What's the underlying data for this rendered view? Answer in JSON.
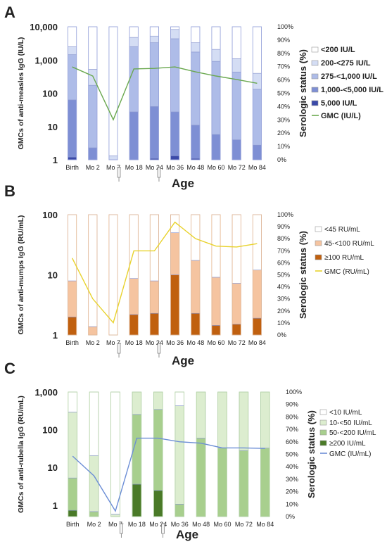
{
  "x_axis_label": "Age",
  "chart_data": [
    {
      "type": "bar",
      "panel": "A",
      "stacked": true,
      "ylabel": "GMCs of anti-measles IgG (IU/L)",
      "y2label": "Serologic status (%)",
      "yscale": "log",
      "yticks": [
        "1",
        "10",
        "100",
        "1,000",
        "10,000"
      ],
      "ylim": [
        1,
        10000
      ],
      "y2lim": [
        0,
        100
      ],
      "y2ticks": [
        "0%",
        "10%",
        "20%",
        "30%",
        "40%",
        "50%",
        "60%",
        "70%",
        "80%",
        "90%",
        "100%"
      ],
      "categories": [
        "Birth",
        "Mo 2",
        "Mo 7",
        "Mo 18",
        "Mo 24",
        "Mo 36",
        "Mo 48",
        "Mo 60",
        "Mo 72",
        "Mo 84"
      ],
      "vaccination_markers_at": [
        "Mo 7",
        "Mo 24"
      ],
      "series": [
        {
          "name": "5,000 IU/L",
          "color": "#3a49a8",
          "values": [
            2,
            0,
            0,
            0,
            1,
            3,
            1,
            0,
            0,
            0
          ]
        },
        {
          "name": "1,000-<5,000 IU/L",
          "color": "#7e8fd4",
          "values": [
            43,
            9,
            0,
            36,
            39,
            33,
            25,
            19,
            15,
            11
          ]
        },
        {
          "name": "275-<1,000 IU/L",
          "color": "#aebce8",
          "values": [
            34,
            47,
            0,
            49,
            48,
            55,
            55,
            55,
            51,
            42
          ]
        },
        {
          "name": "200-<275 IU/L",
          "color": "#d4ddf4",
          "values": [
            6,
            12,
            3,
            7,
            5,
            7,
            7,
            9,
            10,
            12
          ]
        },
        {
          "name": "<200 IU/L",
          "color": "#ffffff",
          "values": [
            15,
            32,
            97,
            8,
            7,
            2,
            12,
            17,
            24,
            35
          ]
        }
      ],
      "gmc_line": {
        "name": "GMC (IU/L)",
        "color": "#6aa84f",
        "values": [
          620,
          330,
          16,
          540,
          560,
          620,
          440,
          330,
          260,
          200
        ]
      }
    },
    {
      "type": "bar",
      "panel": "B",
      "stacked": true,
      "ylabel": "GMCs of anti-mumps IgG (RU/mL)",
      "y2label": "Serologic status (%)",
      "yscale": "log",
      "yticks": [
        "1",
        "10",
        "100"
      ],
      "ylim": [
        1,
        100
      ],
      "y2lim": [
        0,
        100
      ],
      "y2ticks": [
        "0%",
        "10%",
        "20%",
        "30%",
        "40%",
        "50%",
        "60%",
        "70%",
        "80%",
        "90%",
        "100%"
      ],
      "categories": [
        "Birth",
        "Mo 2",
        "Mo 7",
        "Mo 18",
        "Mo 24",
        "Mo 36",
        "Mo 48",
        "Mo 60",
        "Mo 72",
        "Mo 84"
      ],
      "vaccination_markers_at": [
        "Mo 7",
        "Mo 24"
      ],
      "series": [
        {
          "name": "≥100 RU/mL",
          "color": "#c0600f",
          "values": [
            15,
            0,
            0,
            17,
            18,
            50,
            18,
            8,
            9,
            14
          ]
        },
        {
          "name": "45-<100 RU/mL",
          "color": "#f5c4a0",
          "values": [
            30,
            7,
            0,
            30,
            27,
            35,
            44,
            40,
            34,
            40
          ]
        },
        {
          "name": "<45 RU/mL",
          "color": "#ffffff",
          "values": [
            55,
            93,
            100,
            53,
            55,
            15,
            38,
            52,
            57,
            46
          ]
        }
      ],
      "gmc_line": {
        "name": "GMC (RU/mL)",
        "color": "#e8d22c",
        "values": [
          19,
          4,
          1.6,
          25,
          25,
          75,
          40,
          30,
          29,
          33
        ]
      }
    },
    {
      "type": "bar",
      "panel": "C",
      "stacked": true,
      "ylabel": "GMCs of anti-rubella IgG (RU/mL)",
      "y2label": "Serologic status (%)",
      "yscale": "log",
      "yticks": [
        "1",
        "10",
        "100",
        "1,000"
      ],
      "ylim": [
        0.5,
        1000
      ],
      "y2lim": [
        0,
        100
      ],
      "y2ticks": [
        "0%",
        "10%",
        "20%",
        "30%",
        "40%",
        "50%",
        "60%",
        "70%",
        "80%",
        "90%",
        "100%"
      ],
      "categories": [
        "Birth",
        "Mo 2",
        "Mo 7",
        "Mo 18",
        "Mo 24",
        "Mo 36",
        "Mo 48",
        "Mo 60",
        "Mo 72",
        "Mo 84"
      ],
      "vaccination_markers_at": [
        "Mo 7",
        "Mo 24"
      ],
      "series": [
        {
          "name": "≥200 IU/mL",
          "color": "#4a7a28",
          "values": [
            5,
            0,
            0,
            26,
            21,
            0,
            0,
            0,
            0,
            0
          ]
        },
        {
          "name": "50-<200 IU/mL",
          "color": "#a8cf8e",
          "values": [
            26,
            4,
            0,
            56,
            65,
            10,
            63,
            55,
            53,
            55
          ]
        },
        {
          "name": "10-<50 IU/mL",
          "color": "#dcedcf",
          "values": [
            53,
            45,
            2,
            18,
            14,
            79,
            37,
            45,
            47,
            45
          ]
        },
        {
          "name": "<10 IU/mL",
          "color": "#ffffff",
          "values": [
            16,
            51,
            98,
            0,
            0,
            11,
            0,
            0,
            0,
            0
          ]
        }
      ],
      "gmc_line": {
        "name": "GMC (IU/mL)",
        "color": "#6c8ed6",
        "values": [
          20,
          6,
          0.7,
          60,
          60,
          48,
          44,
          33,
          33,
          32
        ]
      }
    }
  ]
}
